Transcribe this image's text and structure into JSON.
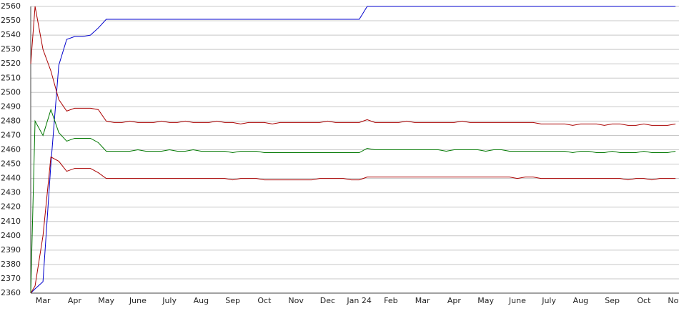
{
  "chart_data": {
    "type": "line",
    "categories": [
      null,
      null,
      "Mar",
      null,
      null,
      null,
      "Apr",
      null,
      null,
      null,
      "May",
      null,
      null,
      null,
      "June",
      null,
      null,
      null,
      "July",
      null,
      null,
      null,
      "Aug",
      null,
      null,
      null,
      "Sep",
      null,
      null,
      null,
      "Oct",
      null,
      null,
      null,
      "Nov",
      null,
      null,
      null,
      "Dec",
      null,
      null,
      null,
      "Jan 24",
      null,
      null,
      null,
      "Feb",
      null,
      null,
      null,
      "Mar",
      null,
      null,
      null,
      "Apr",
      null,
      null,
      null,
      "May",
      null,
      null,
      null,
      "June",
      null,
      null,
      null,
      "July",
      null,
      null,
      null,
      "Aug",
      null,
      null,
      null,
      "Sep",
      null,
      null,
      null,
      "Oct",
      null,
      null,
      null,
      "Nov"
    ],
    "series": [
      {
        "color": "#0000cc",
        "values": [
          2360,
          2363,
          2368,
          2450,
          2519,
          2537,
          2539,
          2539,
          2540,
          2545,
          2551,
          2551,
          2551,
          2551,
          2551,
          2551,
          2551,
          2551,
          2551,
          2551,
          2551,
          2551,
          2551,
          2551,
          2551,
          2551,
          2551,
          2551,
          2551,
          2551,
          2551,
          2551,
          2551,
          2551,
          2551,
          2551,
          2551,
          2551,
          2551,
          2551,
          2551,
          2551,
          2551,
          2560,
          2560,
          2560,
          2560,
          2560,
          2560,
          2560,
          2560,
          2560,
          2560,
          2560,
          2560,
          2560,
          2560,
          2560,
          2560,
          2560,
          2560,
          2560,
          2560,
          2560,
          2560,
          2560,
          2560,
          2560,
          2560,
          2560,
          2560,
          2560,
          2560,
          2560,
          2560,
          2560,
          2560,
          2560,
          2560,
          2560,
          2560,
          2560,
          2560
        ]
      },
      {
        "color": "#aa0000",
        "values": [
          2520,
          2560,
          2530,
          2515,
          2495,
          2487,
          2489,
          2489,
          2489,
          2488,
          2480,
          2479,
          2479,
          2480,
          2479,
          2479,
          2479,
          2480,
          2479,
          2479,
          2480,
          2479,
          2479,
          2479,
          2480,
          2479,
          2479,
          2478,
          2479,
          2479,
          2479,
          2478,
          2479,
          2479,
          2479,
          2479,
          2479,
          2479,
          2480,
          2479,
          2479,
          2479,
          2479,
          2481,
          2479,
          2479,
          2479,
          2479,
          2480,
          2479,
          2479,
          2479,
          2479,
          2479,
          2479,
          2480,
          2479,
          2479,
          2479,
          2479,
          2479,
          2479,
          2479,
          2479,
          2479,
          2478,
          2478,
          2478,
          2478,
          2477,
          2478,
          2478,
          2478,
          2477,
          2478,
          2478,
          2477,
          2477,
          2478,
          2477,
          2477,
          2477,
          2478
        ]
      },
      {
        "color": "#007700",
        "values": [
          2360,
          2480,
          2470,
          2488,
          2472,
          2466,
          2468,
          2468,
          2468,
          2465,
          2459,
          2459,
          2459,
          2459,
          2460,
          2459,
          2459,
          2459,
          2460,
          2459,
          2459,
          2460,
          2459,
          2459,
          2459,
          2459,
          2458,
          2459,
          2459,
          2459,
          2458,
          2458,
          2458,
          2458,
          2458,
          2458,
          2458,
          2458,
          2458,
          2458,
          2458,
          2458,
          2458,
          2461,
          2460,
          2460,
          2460,
          2460,
          2460,
          2460,
          2460,
          2460,
          2460,
          2459,
          2460,
          2460,
          2460,
          2460,
          2459,
          2460,
          2460,
          2459,
          2459,
          2459,
          2459,
          2459,
          2459,
          2459,
          2459,
          2458,
          2459,
          2459,
          2458,
          2458,
          2459,
          2458,
          2458,
          2458,
          2459,
          2458,
          2458,
          2458,
          2459
        ]
      },
      {
        "color": "#aa0000",
        "values": [
          2360,
          2365,
          2400,
          2455,
          2452,
          2445,
          2447,
          2447,
          2447,
          2444,
          2440,
          2440,
          2440,
          2440,
          2440,
          2440,
          2440,
          2440,
          2440,
          2440,
          2440,
          2440,
          2440,
          2440,
          2440,
          2440,
          2439,
          2440,
          2440,
          2440,
          2439,
          2439,
          2439,
          2439,
          2439,
          2439,
          2439,
          2440,
          2440,
          2440,
          2440,
          2439,
          2439,
          2441,
          2441,
          2441,
          2441,
          2441,
          2441,
          2441,
          2441,
          2441,
          2441,
          2441,
          2441,
          2441,
          2441,
          2441,
          2441,
          2441,
          2441,
          2441,
          2440,
          2441,
          2441,
          2440,
          2440,
          2440,
          2440,
          2440,
          2440,
          2440,
          2440,
          2440,
          2440,
          2440,
          2439,
          2440,
          2440,
          2439,
          2440,
          2440,
          2440
        ]
      }
    ],
    "ylim": [
      2360,
      2560
    ],
    "yticks": [
      2360,
      2370,
      2380,
      2390,
      2400,
      2410,
      2420,
      2430,
      2440,
      2450,
      2460,
      2470,
      2480,
      2490,
      2500,
      2510,
      2520,
      2530,
      2540,
      2550,
      2560
    ],
    "grid": true
  }
}
